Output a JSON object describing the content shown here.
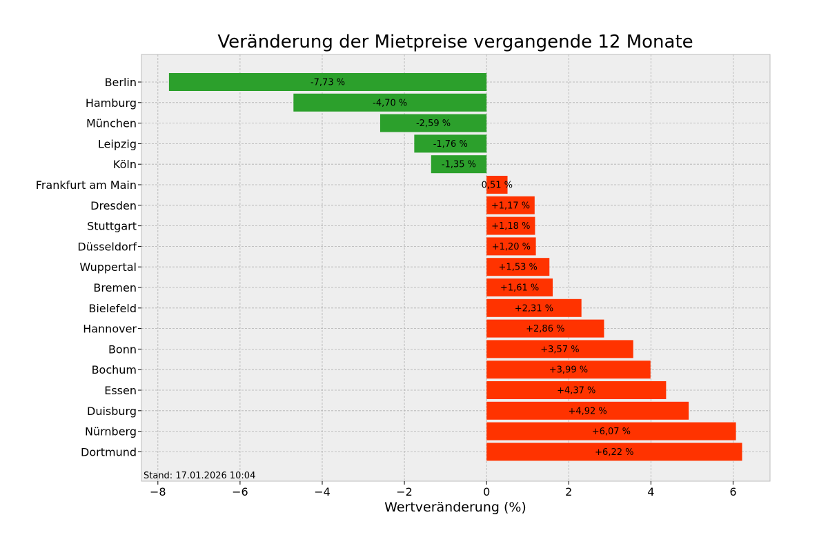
{
  "chart_data": {
    "type": "bar",
    "orientation": "horizontal",
    "title": "Veränderung der Mietpreise vergangende 12 Monate",
    "xlabel": "Wertveränderung (%)",
    "ylabel": "",
    "xlim": [
      -8.4,
      6.9
    ],
    "xticks": [
      -8,
      -6,
      -4,
      -2,
      0,
      2,
      4,
      6
    ],
    "xtick_labels": [
      "−8",
      "−6",
      "−4",
      "−2",
      "0",
      "2",
      "4",
      "6"
    ],
    "grid": true,
    "categories": [
      "Berlin",
      "Hamburg",
      "München",
      "Leipzig",
      "Köln",
      "Frankfurt am Main",
      "Dresden",
      "Stuttgart",
      "Düsseldorf",
      "Wuppertal",
      "Bremen",
      "Bielefeld",
      "Hannover",
      "Bonn",
      "Bochum",
      "Essen",
      "Duisburg",
      "Nürnberg",
      "Dortmund"
    ],
    "values": [
      -7.73,
      -4.7,
      -2.59,
      -1.76,
      -1.35,
      0.51,
      1.17,
      1.18,
      1.2,
      1.53,
      1.61,
      2.31,
      2.86,
      3.57,
      3.99,
      4.37,
      4.92,
      6.07,
      6.22
    ],
    "data_labels": [
      "-7,73 %",
      "-4,70 %",
      "-2,59 %",
      "-1,76 %",
      "-1,35 %",
      "0,51 %",
      "+1,17 %",
      "+1,18 %",
      "+1,20 %",
      "+1,53 %",
      "+1,61 %",
      "+2,31 %",
      "+2,86 %",
      "+3,57 %",
      "+3,99 %",
      "+4,37 %",
      "+4,92 %",
      "+6,07 %",
      "+6,22 %"
    ],
    "colors": {
      "negative": "#2ca02c",
      "positive": "#ff3300",
      "plot_background": "#eeeeee",
      "grid": "#b0b0b0",
      "frame": "#bcbcbc"
    },
    "footnote": "Stand: 17.01.2026 10:04"
  }
}
